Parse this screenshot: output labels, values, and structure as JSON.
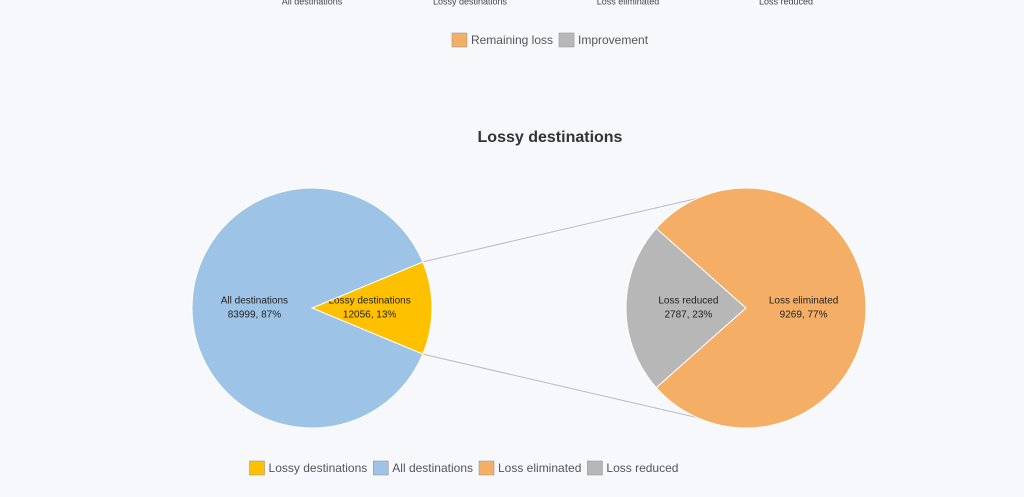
{
  "chart_data": [
    {
      "type": "bar",
      "categories": [
        "All destinations",
        "Lossy destinations",
        "Loss eliminated",
        "Loss reduced"
      ],
      "series": [
        {
          "name": "Remaining loss",
          "color": "#f5ae66"
        },
        {
          "name": "Improvement",
          "color": "#b7b7b7"
        }
      ]
    },
    {
      "type": "pie-of-pie",
      "title": "Lossy destinations",
      "series": [
        {
          "categories": [
            "Lossy destinations",
            "All destinations"
          ],
          "values": [
            12056,
            83999
          ],
          "value_labels": [
            "12056, 13%",
            "83999, 87%"
          ],
          "colors": [
            "#ffc000",
            "#9dc3e6"
          ]
        },
        {
          "categories": [
            "Loss eliminated",
            "Loss reduced"
          ],
          "values": [
            9269,
            2787
          ],
          "value_labels": [
            "9269, 77%",
            "2787, 23%"
          ],
          "colors": [
            "#f5ae66",
            "#b7b7b7"
          ]
        }
      ]
    }
  ]
}
